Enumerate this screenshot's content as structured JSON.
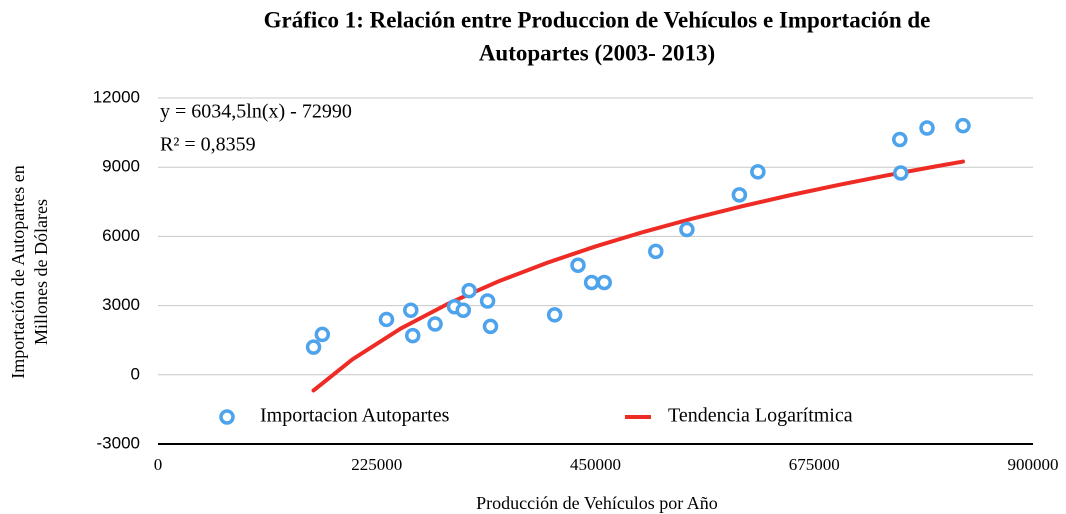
{
  "chart_data": {
    "type": "scatter",
    "title": [
      "Gráfico 1: Relación entre Produccion de Vehículos e Importación de",
      "Autopartes (2003- 2013)"
    ],
    "x_label": "Producción de Vehículos por Año",
    "y_label": [
      "Importación de Autopartes en",
      "Millones de Dólares"
    ],
    "annotations": [
      "y = 6034,5ln(x) - 72990",
      "R² = 0,8359"
    ],
    "xlim": [
      0,
      900000
    ],
    "xticks": [
      0,
      225000,
      450000,
      675000,
      900000
    ],
    "ylim": [
      -3000,
      12000
    ],
    "yticks": [
      -3000,
      0,
      3000,
      6000,
      9000,
      12000
    ],
    "grid": true,
    "legend": "bottom",
    "series": [
      {
        "name": "Importacion Autopartes",
        "color": "#4da3ec",
        "type": "scatter",
        "x": [
          160000,
          169000,
          235000,
          260000,
          262000,
          285000,
          305000,
          314000,
          320000,
          339000,
          342000,
          408000,
          432000,
          446000,
          459000,
          512000,
          544000,
          598000,
          617000,
          763000,
          764000,
          791000,
          828000
        ],
        "values": [
          1200,
          1750,
          2400,
          2800,
          1700,
          2200,
          2950,
          2800,
          3650,
          3200,
          2100,
          2600,
          4750,
          4000,
          4000,
          5350,
          6300,
          7800,
          8800,
          10200,
          8750,
          10700,
          10800
        ]
      },
      {
        "name": "Tendencia Logarítmica",
        "color": "#ee2b24",
        "type": "line",
        "x": [
          160000,
          200000,
          250000,
          300000,
          350000,
          400000,
          450000,
          500000,
          550000,
          600000,
          650000,
          700000,
          750000,
          800000,
          828000
        ],
        "values": [
          -680,
          670,
          2015,
          3117,
          4048,
          4854,
          5565,
          6201,
          6776,
          7301,
          7784,
          8231,
          8648,
          9037,
          9245
        ]
      }
    ]
  }
}
